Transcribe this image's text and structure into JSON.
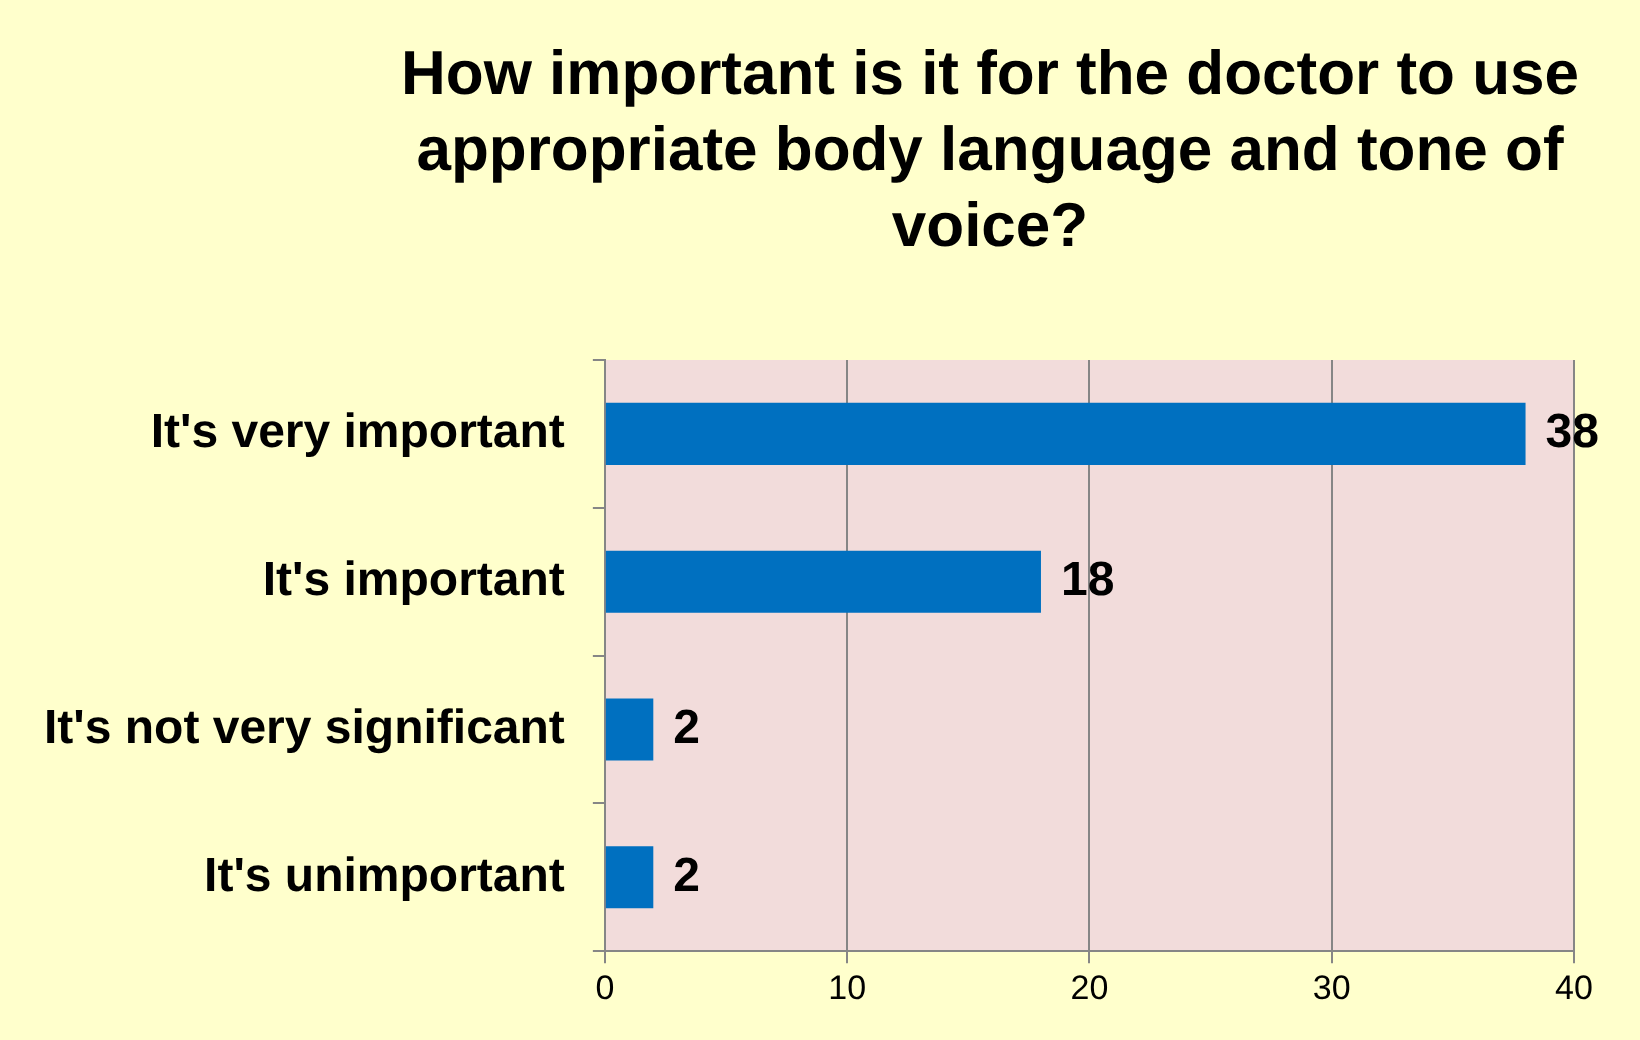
{
  "chart_data": {
    "type": "bar",
    "orientation": "horizontal",
    "title": "How important is it for the doctor to use appropriate body language and tone of voice?",
    "categories": [
      "It's very important",
      "It's important",
      "It's not very significant",
      "It's unimportant"
    ],
    "values": [
      38,
      18,
      2,
      2
    ],
    "color": "#0070c0",
    "xlim": [
      0,
      40
    ],
    "xticks": [
      0,
      10,
      20,
      30,
      40
    ],
    "grid": "x",
    "data_labels": true
  }
}
